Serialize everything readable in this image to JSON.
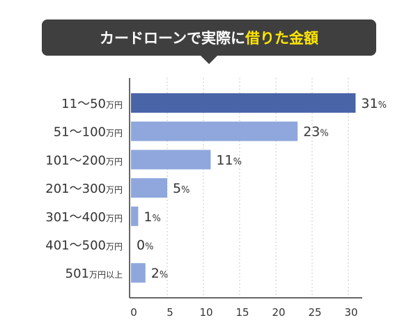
{
  "title": {
    "prefix": "カードローンで実際に",
    "highlight": "借りた金額",
    "bg_color": "#3f3f3f",
    "text_color": "#ffffff",
    "highlight_color": "#ffe600"
  },
  "colors": {
    "top_bar": "#4a64a8",
    "bar": "#8fa7dc",
    "axis": "#333333",
    "grid": "#c8c8c8",
    "text": "#333333"
  },
  "chart_data": {
    "type": "bar",
    "orientation": "horizontal",
    "unit_small": "万円",
    "categories": [
      {
        "main": "11〜50",
        "small": "万円"
      },
      {
        "main": "51〜100",
        "small": "万円"
      },
      {
        "main": "101〜200",
        "small": "万円"
      },
      {
        "main": "201〜300",
        "small": "万円"
      },
      {
        "main": "301〜400",
        "small": "万円"
      },
      {
        "main": "401〜500",
        "small": "万円"
      },
      {
        "main": "501",
        "small": "万円以上"
      }
    ],
    "values": [
      31,
      23,
      11,
      5,
      1,
      0,
      2
    ],
    "value_suffix": "%",
    "xlim": [
      0,
      32
    ],
    "xticks": [
      0,
      5,
      10,
      15,
      20,
      25,
      30
    ],
    "grid": "vertical dotted"
  }
}
